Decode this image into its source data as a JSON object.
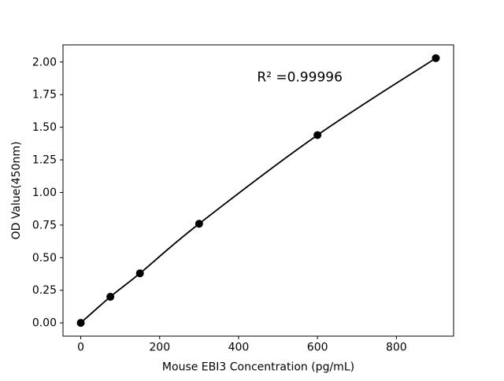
{
  "chart_data": {
    "type": "line",
    "title": "",
    "xlabel": "Mouse EBI3 Concentration (pg/mL)",
    "ylabel": "OD Value(450nm)",
    "x": [
      0,
      75,
      150,
      300,
      600,
      900
    ],
    "y": [
      0.0,
      0.2,
      0.38,
      0.76,
      1.44,
      2.03
    ],
    "xlim": [
      -45,
      945
    ],
    "ylim": [
      -0.1015,
      2.1315
    ],
    "xticks": [
      0,
      200,
      400,
      600,
      800
    ],
    "yticks": [
      0.0,
      0.25,
      0.5,
      0.75,
      1.0,
      1.25,
      1.5,
      1.75,
      2.0
    ],
    "grid": false,
    "legend": null,
    "line_color": "#000000",
    "marker": "circle",
    "marker_color": "#000000",
    "annotation": {
      "text": "R² =0.99996",
      "x": 555,
      "y": 1.85
    }
  }
}
